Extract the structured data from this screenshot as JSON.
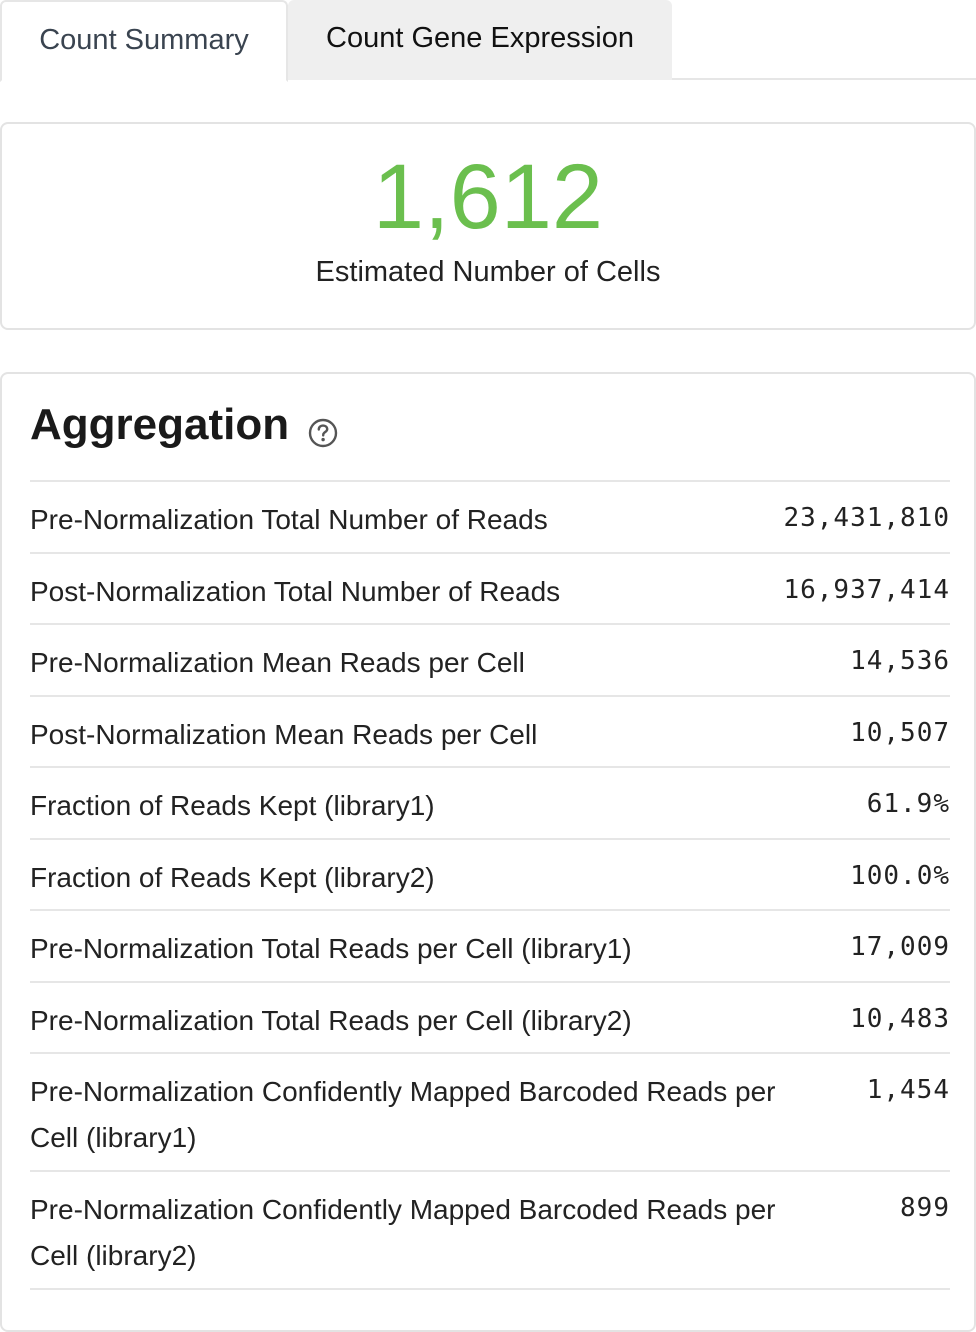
{
  "tabs": [
    {
      "label": "Count Summary",
      "active": true
    },
    {
      "label": "Count Gene Expression",
      "active": false
    }
  ],
  "summary": {
    "estimated_cells_value": "1,612",
    "estimated_cells_label": "Estimated Number of Cells",
    "accent_color": "#6bbf4e"
  },
  "aggregation": {
    "title": "Aggregation",
    "help_icon": "question-circle-icon",
    "rows": [
      {
        "label": "Pre-Normalization Total Number of Reads",
        "value": "23,431,810"
      },
      {
        "label": "Post-Normalization Total Number of Reads",
        "value": "16,937,414"
      },
      {
        "label": "Pre-Normalization Mean Reads per Cell",
        "value": "14,536"
      },
      {
        "label": "Post-Normalization Mean Reads per Cell",
        "value": "10,507"
      },
      {
        "label": "Fraction of Reads Kept (library1)",
        "value": "61.9%"
      },
      {
        "label": "Fraction of Reads Kept (library2)",
        "value": "100.0%"
      },
      {
        "label": "Pre-Normalization Total Reads per Cell (library1)",
        "value": "17,009"
      },
      {
        "label": "Pre-Normalization Total Reads per Cell (library2)",
        "value": "10,483"
      },
      {
        "label": "Pre-Normalization Confidently Mapped Barcoded Reads per Cell (library1)",
        "value": "1,454"
      },
      {
        "label": "Pre-Normalization Confidently Mapped Barcoded Reads per Cell (library2)",
        "value": "899"
      }
    ]
  }
}
